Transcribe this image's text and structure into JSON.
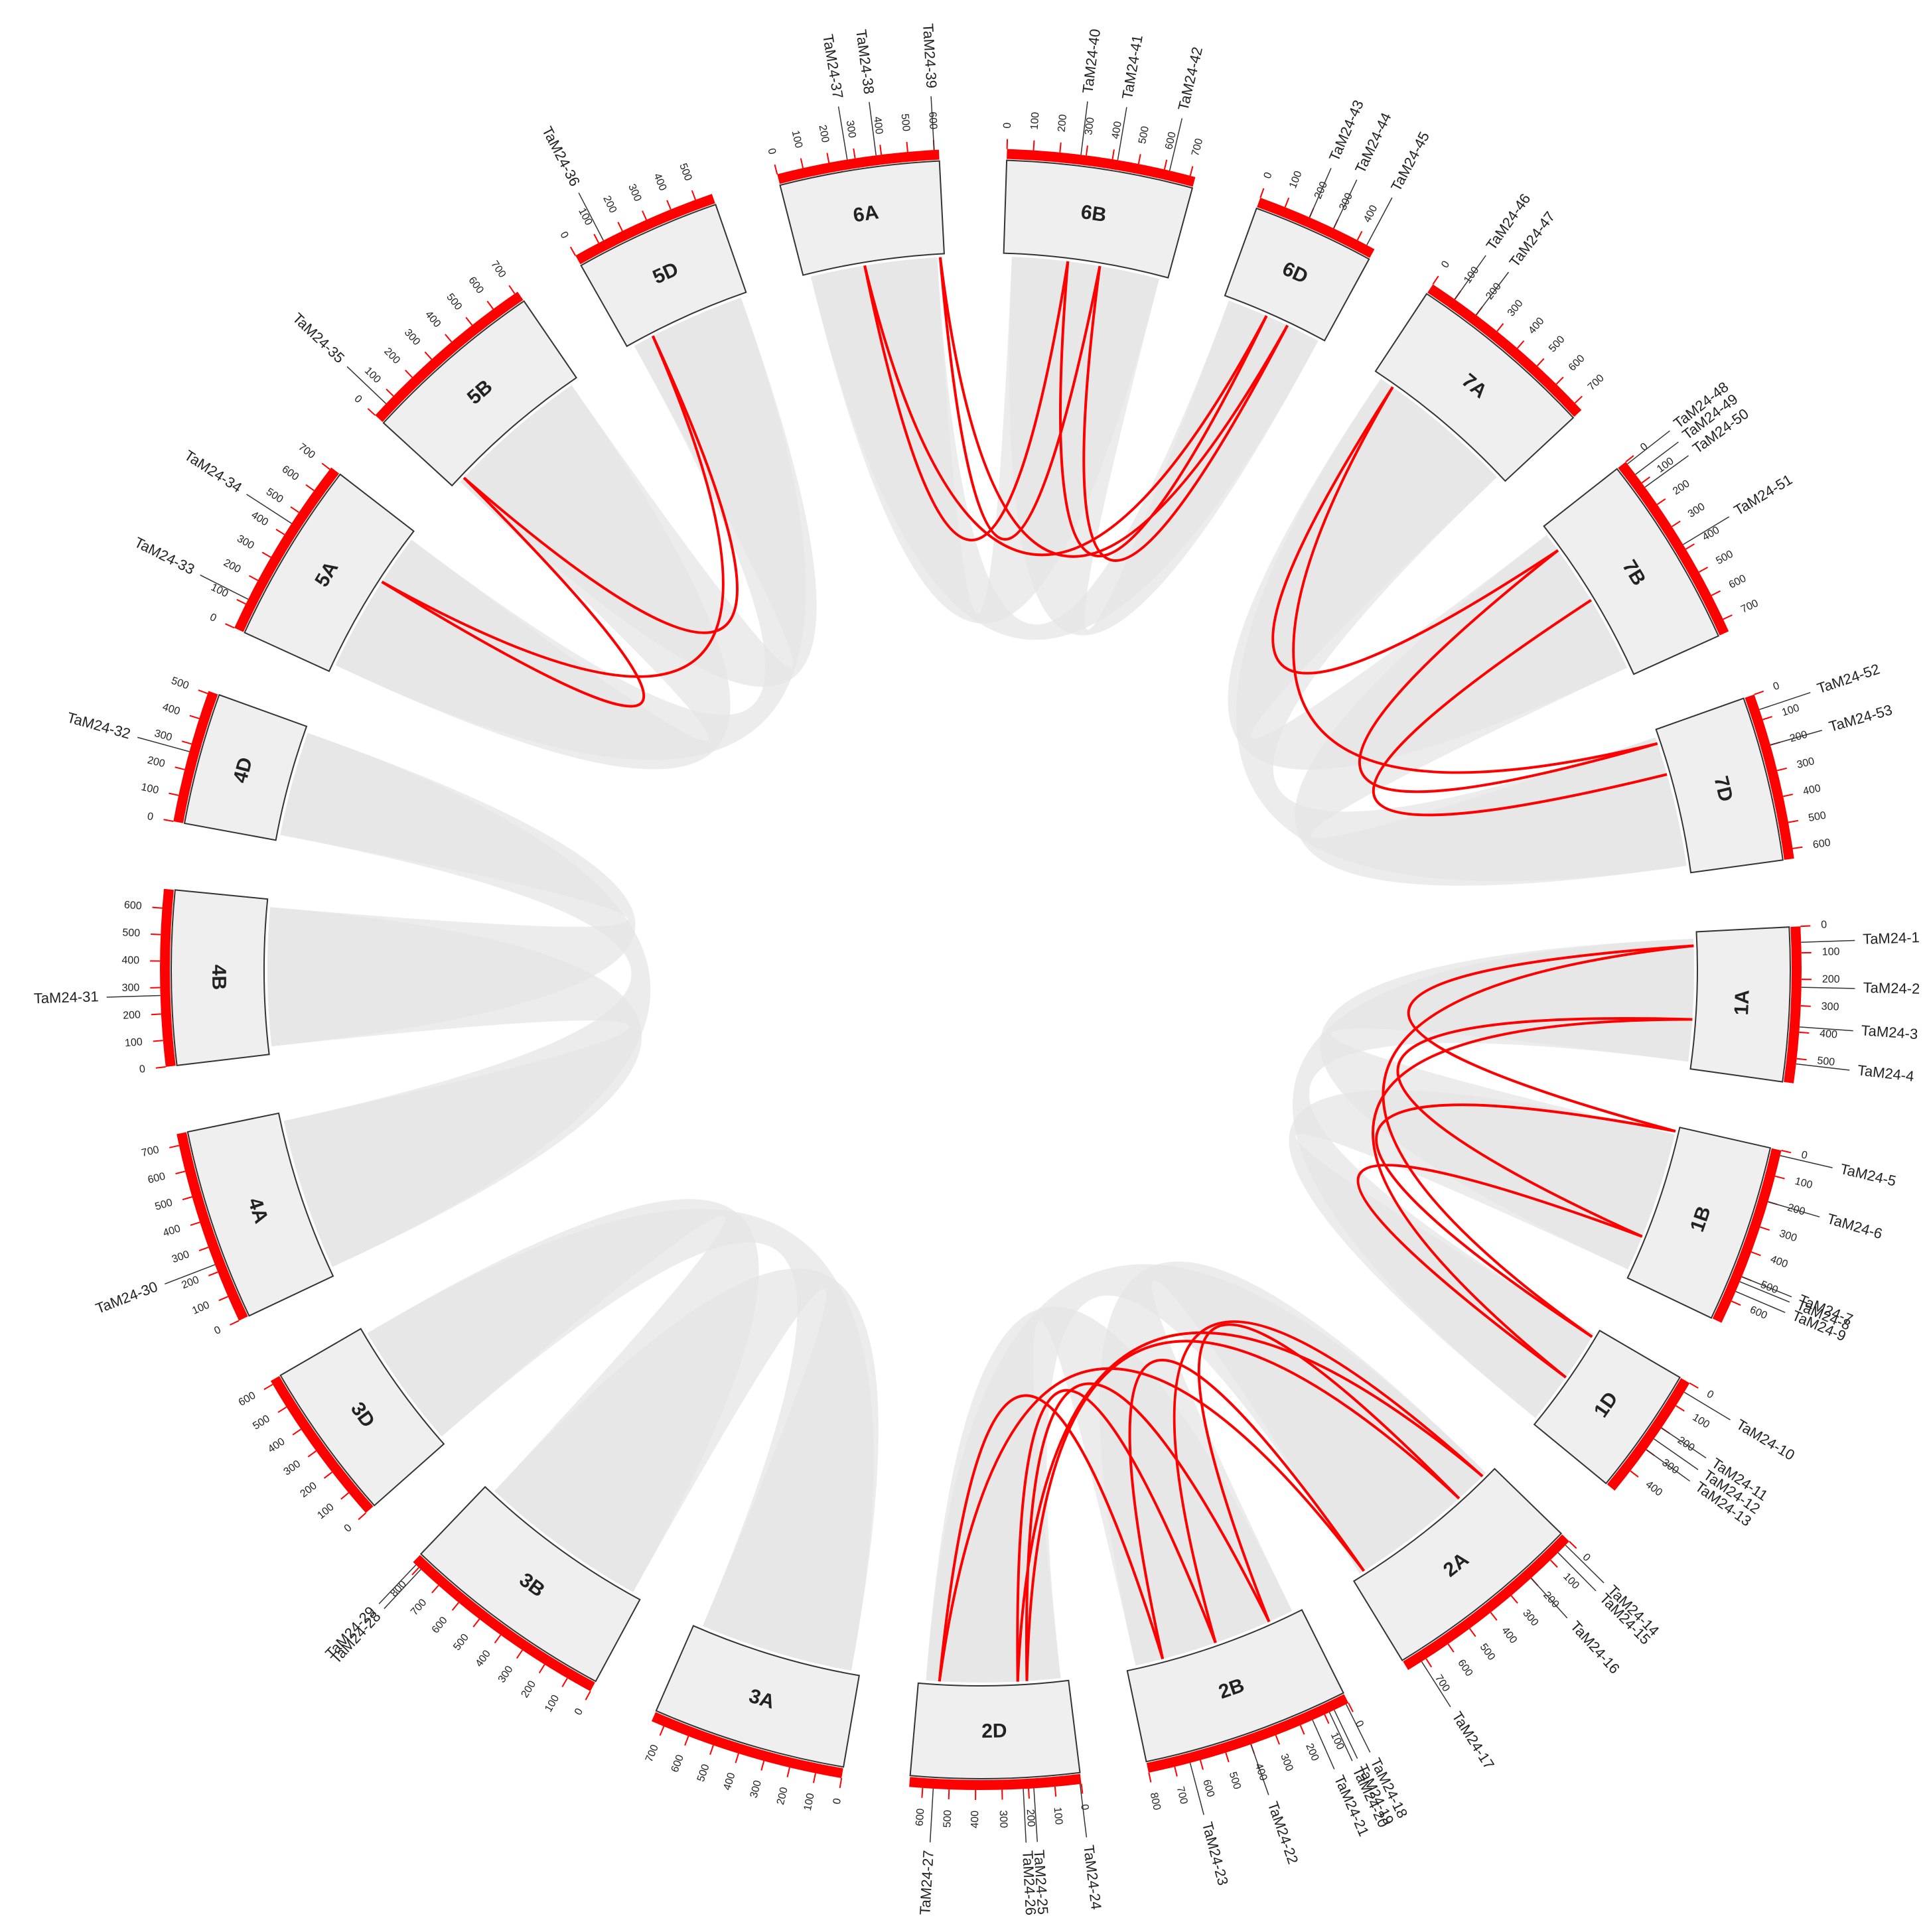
{
  "chart_data": {
    "type": "circos",
    "ring_color": "#ff0000",
    "link_color": "#ff0000",
    "ribbon_color": "#e6e6e6",
    "box_color": "#efefef",
    "chromosomes": [
      {
        "name": "1A",
        "length": 594,
        "ticks": [
          0,
          100,
          200,
          300,
          400,
          500
        ],
        "genes": [
          {
            "name": "TaM24-1",
            "position": 60
          },
          {
            "name": "TaM24-2",
            "position": 230
          },
          {
            "name": "TaM24-3",
            "position": 380
          },
          {
            "name": "TaM24-4",
            "position": 520
          }
        ]
      },
      {
        "name": "1B",
        "length": 690,
        "ticks": [
          0,
          100,
          200,
          300,
          400,
          500,
          600
        ],
        "genes": [
          {
            "name": "TaM24-5",
            "position": 20
          },
          {
            "name": "TaM24-6",
            "position": 200
          },
          {
            "name": "TaM24-7",
            "position": 500
          },
          {
            "name": "TaM24-8",
            "position": 520
          },
          {
            "name": "TaM24-9",
            "position": 560
          }
        ]
      },
      {
        "name": "1D",
        "length": 495,
        "ticks": [
          0,
          100,
          200,
          300,
          400
        ],
        "genes": [
          {
            "name": "TaM24-10",
            "position": 40
          },
          {
            "name": "TaM24-11",
            "position": 200
          },
          {
            "name": "TaM24-12",
            "position": 250
          },
          {
            "name": "TaM24-13",
            "position": 300
          }
        ]
      },
      {
        "name": "2A",
        "length": 780,
        "ticks": [
          0,
          100,
          200,
          300,
          400,
          500,
          600,
          700
        ],
        "genes": [
          {
            "name": "TaM24-14",
            "position": 20
          },
          {
            "name": "TaM24-15",
            "position": 60
          },
          {
            "name": "TaM24-16",
            "position": 200
          },
          {
            "name": "TaM24-17",
            "position": 720
          }
        ]
      },
      {
        "name": "2B",
        "length": 801,
        "ticks": [
          0,
          100,
          200,
          300,
          400,
          500,
          600,
          700,
          800
        ],
        "genes": [
          {
            "name": "TaM24-18",
            "position": 10
          },
          {
            "name": "TaM24-19",
            "position": 60
          },
          {
            "name": "TaM24-20",
            "position": 80
          },
          {
            "name": "TaM24-21",
            "position": 150
          },
          {
            "name": "TaM24-22",
            "position": 400
          },
          {
            "name": "TaM24-23",
            "position": 640
          }
        ]
      },
      {
        "name": "2D",
        "length": 651,
        "ticks": [
          0,
          100,
          200,
          300,
          400,
          500,
          600
        ],
        "genes": [
          {
            "name": "TaM24-24",
            "position": 5
          },
          {
            "name": "TaM24-25",
            "position": 180
          },
          {
            "name": "TaM24-26",
            "position": 220
          },
          {
            "name": "TaM24-27",
            "position": 560
          }
        ]
      },
      {
        "name": "3A",
        "length": 750,
        "ticks": [
          0,
          100,
          200,
          300,
          400,
          500,
          600,
          700
        ],
        "genes": []
      },
      {
        "name": "3B",
        "length": 830,
        "ticks": [
          0,
          100,
          200,
          300,
          400,
          500,
          600,
          700,
          800
        ],
        "genes": [
          {
            "name": "TaM24-28",
            "position": 790
          },
          {
            "name": "TaM24-29",
            "position": 815
          }
        ]
      },
      {
        "name": "3D",
        "length": 615,
        "ticks": [
          0,
          100,
          200,
          300,
          400,
          500,
          600
        ],
        "genes": []
      },
      {
        "name": "4A",
        "length": 744,
        "ticks": [
          0,
          100,
          200,
          300,
          400,
          500,
          600,
          700
        ],
        "genes": [
          {
            "name": "TaM24-30",
            "position": 230
          }
        ]
      },
      {
        "name": "4B",
        "length": 673,
        "ticks": [
          0,
          100,
          200,
          300,
          400,
          500,
          600
        ],
        "genes": [
          {
            "name": "TaM24-31",
            "position": 270
          }
        ]
      },
      {
        "name": "4D",
        "length": 510,
        "ticks": [
          0,
          100,
          200,
          300,
          400,
          500
        ],
        "genes": [
          {
            "name": "TaM24-32",
            "position": 270
          }
        ]
      },
      {
        "name": "5A",
        "length": 709,
        "ticks": [
          0,
          100,
          200,
          300,
          400,
          500,
          600,
          700
        ],
        "genes": [
          {
            "name": "TaM24-33",
            "position": 120
          },
          {
            "name": "TaM24-34",
            "position": 450
          }
        ]
      },
      {
        "name": "5B",
        "length": 713,
        "ticks": [
          0,
          100,
          200,
          300,
          400,
          500,
          600,
          700
        ],
        "genes": [
          {
            "name": "TaM24-35",
            "position": 60
          }
        ]
      },
      {
        "name": "5D",
        "length": 566,
        "ticks": [
          0,
          100,
          200,
          300,
          400,
          500
        ],
        "genes": [
          {
            "name": "TaM24-36",
            "position": 120
          }
        ]
      },
      {
        "name": "6A",
        "length": 618,
        "ticks": [
          0,
          100,
          200,
          300,
          400,
          500,
          600
        ],
        "genes": [
          {
            "name": "TaM24-37",
            "position": 270
          },
          {
            "name": "TaM24-38",
            "position": 380
          },
          {
            "name": "TaM24-39",
            "position": 600
          }
        ]
      },
      {
        "name": "6B",
        "length": 720,
        "ticks": [
          0,
          100,
          200,
          300,
          400,
          500,
          600,
          700
        ],
        "genes": [
          {
            "name": "TaM24-40",
            "position": 280
          },
          {
            "name": "TaM24-41",
            "position": 420
          },
          {
            "name": "TaM24-42",
            "position": 620
          }
        ]
      },
      {
        "name": "6D",
        "length": 473,
        "ticks": [
          0,
          100,
          200,
          300,
          400
        ],
        "genes": [
          {
            "name": "TaM24-43",
            "position": 200
          },
          {
            "name": "TaM24-44",
            "position": 300
          },
          {
            "name": "TaM24-45",
            "position": 440
          }
        ]
      },
      {
        "name": "7A",
        "length": 736,
        "ticks": [
          0,
          100,
          200,
          300,
          400,
          500,
          600,
          700
        ],
        "genes": [
          {
            "name": "TaM24-46",
            "position": 100
          },
          {
            "name": "TaM24-47",
            "position": 200
          }
        ]
      },
      {
        "name": "7B",
        "length": 750,
        "ticks": [
          0,
          100,
          200,
          300,
          400,
          500,
          600,
          700
        ],
        "genes": [
          {
            "name": "TaM24-48",
            "position": 10
          },
          {
            "name": "TaM24-49",
            "position": 60
          },
          {
            "name": "TaM24-50",
            "position": 120
          },
          {
            "name": "TaM24-51",
            "position": 380
          }
        ]
      },
      {
        "name": "7D",
        "length": 638,
        "ticks": [
          0,
          100,
          200,
          300,
          400,
          500,
          600
        ],
        "genes": [
          {
            "name": "TaM24-52",
            "position": 60
          },
          {
            "name": "TaM24-53",
            "position": 200
          }
        ]
      }
    ],
    "links": [
      [
        "TaM24-1",
        "TaM24-5"
      ],
      [
        "TaM24-1",
        "TaM24-10"
      ],
      [
        "TaM24-5",
        "TaM24-10"
      ],
      [
        "TaM24-3",
        "TaM24-7"
      ],
      [
        "TaM24-3",
        "TaM24-12"
      ],
      [
        "TaM24-7",
        "TaM24-12"
      ],
      [
        "TaM24-16",
        "TaM24-21"
      ],
      [
        "TaM24-16",
        "TaM24-25"
      ],
      [
        "TaM24-21",
        "TaM24-25"
      ],
      [
        "TaM24-17",
        "TaM24-23"
      ],
      [
        "TaM24-17",
        "TaM24-27"
      ],
      [
        "TaM24-23",
        "TaM24-27"
      ],
      [
        "TaM24-15",
        "TaM24-22"
      ],
      [
        "TaM24-15",
        "TaM24-26"
      ],
      [
        "TaM24-22",
        "TaM24-26"
      ],
      [
        "TaM24-34",
        "TaM24-35"
      ],
      [
        "TaM24-34",
        "TaM24-36"
      ],
      [
        "TaM24-35",
        "TaM24-36"
      ],
      [
        "TaM24-37",
        "TaM24-40"
      ],
      [
        "TaM24-37",
        "TaM24-43"
      ],
      [
        "TaM24-40",
        "TaM24-43"
      ],
      [
        "TaM24-39",
        "TaM24-41"
      ],
      [
        "TaM24-39",
        "TaM24-44"
      ],
      [
        "TaM24-41",
        "TaM24-44"
      ],
      [
        "TaM24-46",
        "TaM24-50"
      ],
      [
        "TaM24-46",
        "TaM24-52"
      ],
      [
        "TaM24-50",
        "TaM24-52"
      ],
      [
        "TaM24-51",
        "TaM24-53"
      ]
    ]
  }
}
